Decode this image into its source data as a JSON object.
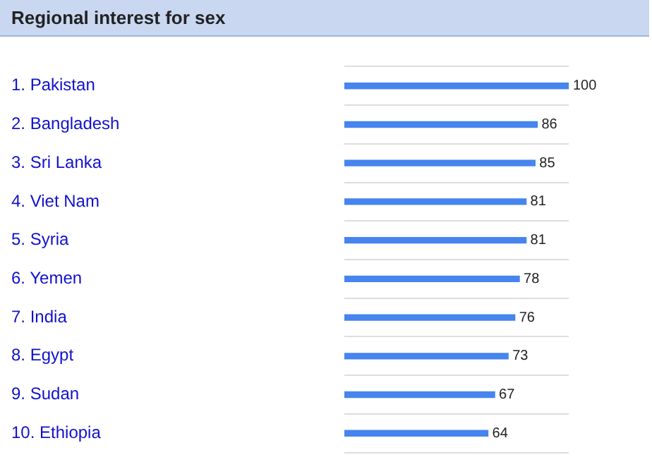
{
  "chart_data": {
    "type": "bar",
    "orientation": "horizontal",
    "title": "Regional interest for sex",
    "categories": [
      "1. Pakistan",
      "2. Bangladesh",
      "3. Sri Lanka",
      "4. Viet Nam",
      "5. Syria",
      "6. Yemen",
      "7. India",
      "8. Egypt",
      "9. Sudan",
      "10. Ethiopia"
    ],
    "values": [
      100,
      86,
      85,
      81,
      81,
      78,
      76,
      73,
      67,
      64
    ],
    "color": "#4684ee",
    "xlim": [
      0,
      100
    ],
    "tick_labels": "y",
    "grid": "y",
    "legend": false,
    "data_labels": true
  }
}
